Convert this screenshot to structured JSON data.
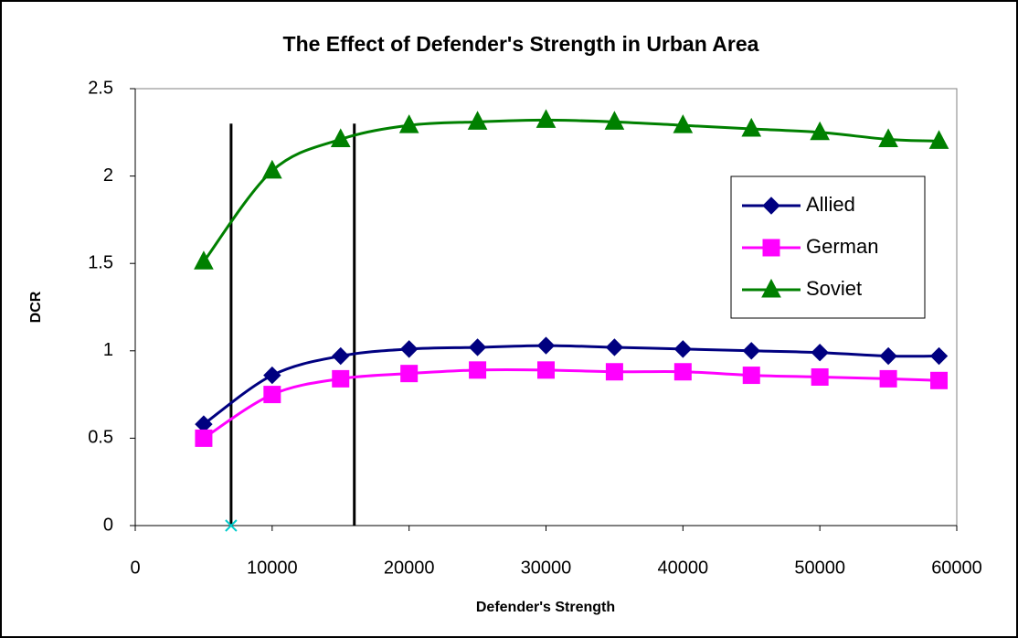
{
  "chart_data": {
    "type": "line",
    "title": "The Effect of Defender's Strength in Urban Area",
    "x_label": "Defender's Strength",
    "y_label": "DCR",
    "x": [
      5000,
      10000,
      15000,
      20000,
      25000,
      30000,
      35000,
      40000,
      45000,
      50000,
      55000,
      58700
    ],
    "series": [
      {
        "name": "Allied",
        "color": "#000080",
        "marker": "diamond",
        "values": [
          0.58,
          0.86,
          0.97,
          1.01,
          1.02,
          1.03,
          1.02,
          1.01,
          1.0,
          0.99,
          0.97,
          0.97
        ]
      },
      {
        "name": "German",
        "color": "#ff00ff",
        "marker": "square",
        "values": [
          0.5,
          0.75,
          0.84,
          0.87,
          0.89,
          0.89,
          0.88,
          0.88,
          0.86,
          0.85,
          0.84,
          0.83
        ]
      },
      {
        "name": "Soviet",
        "color": "#008000",
        "marker": "triangle",
        "values": [
          1.51,
          2.03,
          2.21,
          2.29,
          2.31,
          2.32,
          2.31,
          2.29,
          2.27,
          2.25,
          2.21,
          2.2
        ]
      }
    ],
    "reference_lines": {
      "x": [
        7000,
        16000
      ],
      "ylim": [
        0,
        2.3
      ],
      "color": "#000000"
    },
    "markers": [
      {
        "x": 7000,
        "y": 0,
        "color": "#00cccc"
      }
    ],
    "xlim": [
      0,
      60000
    ],
    "xticks": [
      0,
      10000,
      20000,
      30000,
      40000,
      50000,
      60000
    ],
    "ylim": [
      0,
      2.5
    ],
    "yticks": [
      0,
      0.5,
      1,
      1.5,
      2,
      2.5
    ],
    "grid": false,
    "legend_position": "right"
  }
}
